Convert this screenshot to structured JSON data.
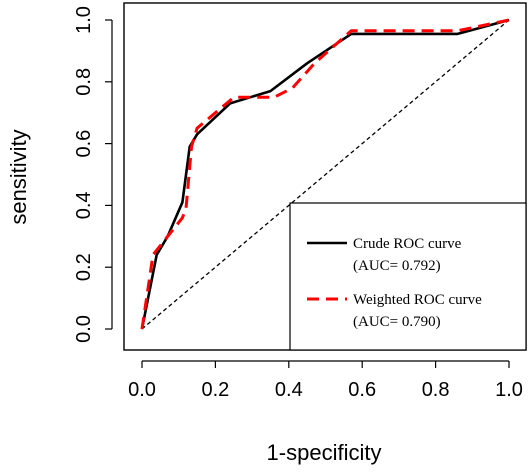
{
  "chart_data": {
    "type": "line",
    "xlabel": "1-specificity",
    "ylabel": "sensitivity",
    "xlim": [
      0,
      1
    ],
    "ylim": [
      0,
      1
    ],
    "xticks": [
      "0.0",
      "0.2",
      "0.4",
      "0.6",
      "0.8",
      "1.0"
    ],
    "yticks": [
      "0.0",
      "0.2",
      "0.4",
      "0.6",
      "0.8",
      "1.0"
    ],
    "grid": false,
    "legend_position": "bottom-right",
    "reference_line": {
      "x": [
        0,
        1
      ],
      "y": [
        0,
        1
      ],
      "color": "#000000",
      "style": "dashed"
    },
    "series": [
      {
        "name": "Crude ROC curve",
        "sublabel": "(AUC= 0.792)",
        "color": "#000000",
        "style": "solid",
        "x": [
          0.0,
          0.04,
          0.07,
          0.11,
          0.13,
          0.15,
          0.24,
          0.35,
          0.45,
          0.57,
          0.86,
          1.0
        ],
        "y": [
          0.0,
          0.24,
          0.3,
          0.41,
          0.59,
          0.63,
          0.73,
          0.77,
          0.86,
          0.955,
          0.955,
          1.0
        ]
      },
      {
        "name": "Weighted ROC curve",
        "sublabel": "(AUC= 0.790)",
        "color": "#ff0000",
        "style": "dashed",
        "x": [
          0.0,
          0.03,
          0.07,
          0.11,
          0.12,
          0.135,
          0.15,
          0.25,
          0.36,
          0.41,
          0.47,
          0.57,
          0.86,
          1.0
        ],
        "y": [
          0.0,
          0.24,
          0.3,
          0.36,
          0.39,
          0.59,
          0.65,
          0.75,
          0.75,
          0.78,
          0.86,
          0.965,
          0.965,
          1.0
        ]
      }
    ]
  }
}
